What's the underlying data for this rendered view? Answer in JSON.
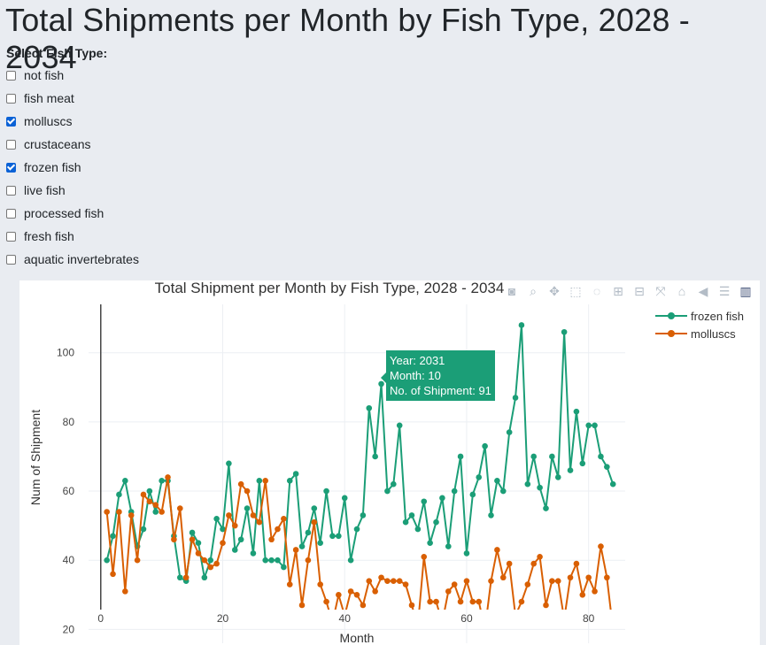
{
  "page": {
    "title": "Total Shipments per Month by Fish Type, 2028 - 2034",
    "filter_label": "Select Fish Type:"
  },
  "filters": [
    {
      "label": "not fish",
      "checked": false
    },
    {
      "label": "fish meat",
      "checked": false
    },
    {
      "label": "molluscs",
      "checked": true
    },
    {
      "label": "crustaceans",
      "checked": false
    },
    {
      "label": "frozen fish",
      "checked": true
    },
    {
      "label": "live fish",
      "checked": false
    },
    {
      "label": "processed fish",
      "checked": false
    },
    {
      "label": "fresh fish",
      "checked": false
    },
    {
      "label": "aquatic invertebrates",
      "checked": false
    }
  ],
  "modebar_icons": [
    "camera-icon",
    "zoom-icon",
    "pan-icon",
    "box-select-icon",
    "lasso-icon",
    "zoom-in-icon",
    "zoom-out-icon",
    "autoscale-icon",
    "home-icon",
    "spike-lines-icon",
    "compare-hover-icon",
    "plotly-logo-icon"
  ],
  "tooltip": {
    "line1": "Year: 2031",
    "line2": "Month: 10",
    "line3": "No. of Shipment: 91"
  },
  "chart_data": {
    "type": "line",
    "title": "Total Shipment per Month by Fish Type, 2028 - 2034",
    "xlabel": "Month",
    "ylabel": "Num of Shipment",
    "xlim": [
      -2,
      86
    ],
    "ylim": [
      16,
      114
    ],
    "xticks": [
      0,
      20,
      40,
      60,
      80
    ],
    "yticks": [
      20,
      40,
      60,
      80,
      100
    ],
    "grid": true,
    "legend_position": "top-right",
    "x": [
      1,
      2,
      3,
      4,
      5,
      6,
      7,
      8,
      9,
      10,
      11,
      12,
      13,
      14,
      15,
      16,
      17,
      18,
      19,
      20,
      21,
      22,
      23,
      24,
      25,
      26,
      27,
      28,
      29,
      30,
      31,
      32,
      33,
      34,
      35,
      36,
      37,
      38,
      39,
      40,
      41,
      42,
      43,
      44,
      45,
      46,
      47,
      48,
      49,
      50,
      51,
      52,
      53,
      54,
      55,
      56,
      57,
      58,
      59,
      60,
      61,
      62,
      63,
      64,
      65,
      66,
      67,
      68,
      69,
      70,
      71,
      72,
      73,
      74,
      75,
      76,
      77,
      78,
      79,
      80,
      81,
      82,
      83,
      84
    ],
    "series": [
      {
        "name": "frozen fish",
        "color": "#1b9e77",
        "values": [
          40,
          47,
          59,
          63,
          54,
          44,
          49,
          60,
          54,
          63,
          63,
          47,
          35,
          34,
          48,
          45,
          35,
          40,
          52,
          49,
          68,
          43,
          46,
          55,
          42,
          63,
          40,
          40,
          40,
          38,
          63,
          65,
          44,
          48,
          55,
          45,
          60,
          47,
          47,
          58,
          40,
          49,
          53,
          84,
          70,
          91,
          60,
          62,
          79,
          51,
          53,
          49,
          57,
          45,
          51,
          58,
          44,
          60,
          70,
          42,
          59,
          64,
          73,
          53,
          63,
          60,
          77,
          87,
          108,
          62,
          70,
          61,
          55,
          70,
          64,
          106,
          66,
          83,
          68,
          79,
          79,
          70,
          67,
          62
        ]
      },
      {
        "name": "molluscs",
        "color": "#d95f02",
        "values": [
          54,
          36,
          54,
          31,
          53,
          40,
          59,
          57,
          56,
          54,
          64,
          46,
          55,
          35,
          46,
          42,
          40,
          38,
          39,
          45,
          53,
          50,
          62,
          60,
          53,
          51,
          63,
          46,
          49,
          52,
          33,
          43,
          27,
          40,
          51,
          33,
          28,
          22,
          30,
          24,
          31,
          30,
          27,
          34,
          31,
          35,
          34,
          34,
          34,
          33,
          27,
          21,
          41,
          28,
          28,
          22,
          31,
          33,
          28,
          34,
          28,
          28,
          20,
          34,
          43,
          35,
          39,
          24,
          28,
          33,
          39,
          41,
          27,
          34,
          34,
          23,
          35,
          39,
          30,
          35,
          31,
          44,
          35,
          20
        ]
      }
    ]
  }
}
